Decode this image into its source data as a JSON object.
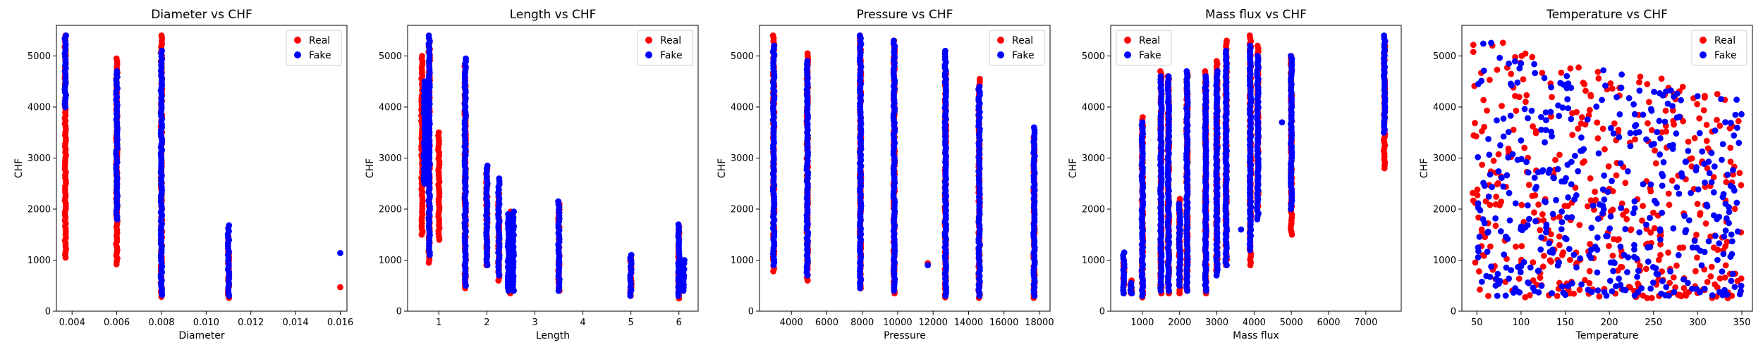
{
  "chart_data": [
    {
      "type": "scatter",
      "title": "Diameter vs CHF",
      "xlabel": "Diameter",
      "ylabel": "CHF",
      "xlim": [
        0.0033,
        0.0163
      ],
      "ylim": [
        0,
        5600
      ],
      "xticks": [
        0.004,
        0.006,
        0.008,
        0.01,
        0.012,
        0.014,
        0.016
      ],
      "xtick_labels": [
        "0.004",
        "0.006",
        "0.008",
        "0.010",
        "0.012",
        "0.014",
        "0.016"
      ],
      "yticks": [
        0,
        1000,
        2000,
        3000,
        4000,
        5000
      ],
      "ytick_labels": [
        "0",
        "1000",
        "2000",
        "3000",
        "4000",
        "5000"
      ],
      "legend_position": "top-right",
      "series": [
        {
          "name": "Real",
          "color": "#ff0000",
          "clusters": [
            {
              "x": 0.0037,
              "ymin": 1050,
              "ymax": 5400
            },
            {
              "x": 0.006,
              "ymin": 920,
              "ymax": 4950
            },
            {
              "x": 0.008,
              "ymin": 280,
              "ymax": 5400
            },
            {
              "x": 0.011,
              "ymin": 260,
              "ymax": 1450
            }
          ],
          "points": [
            [
              0.016,
              470
            ]
          ]
        },
        {
          "name": "Fake",
          "color": "#0000ff",
          "clusters": [
            {
              "x": 0.0037,
              "ymin": 4000,
              "ymax": 5400
            },
            {
              "x": 0.006,
              "ymin": 1800,
              "ymax": 4700
            },
            {
              "x": 0.008,
              "ymin": 320,
              "ymax": 5100
            },
            {
              "x": 0.011,
              "ymin": 300,
              "ymax": 1680
            }
          ],
          "points": [
            [
              0.016,
              1140
            ]
          ]
        }
      ]
    },
    {
      "type": "scatter",
      "title": "Length vs CHF",
      "xlabel": "Length",
      "ylabel": "CHF",
      "xlim": [
        0.35,
        6.4
      ],
      "ylim": [
        0,
        5600
      ],
      "xticks": [
        1,
        2,
        3,
        4,
        5,
        6
      ],
      "xtick_labels": [
        "1",
        "2",
        "3",
        "4",
        "5",
        "6"
      ],
      "yticks": [
        0,
        1000,
        2000,
        3000,
        4000,
        5000
      ],
      "ytick_labels": [
        "0",
        "1000",
        "2000",
        "3000",
        "4000",
        "5000"
      ],
      "legend_position": "top-right",
      "series": [
        {
          "name": "Real",
          "color": "#ff0000",
          "clusters": [
            {
              "x": 0.65,
              "ymin": 1500,
              "ymax": 5000
            },
            {
              "x": 0.8,
              "ymin": 950,
              "ymax": 5300
            },
            {
              "x": 1.0,
              "ymin": 1400,
              "ymax": 3500
            },
            {
              "x": 1.55,
              "ymin": 450,
              "ymax": 4800
            },
            {
              "x": 2.0,
              "ymin": 900,
              "ymax": 2800
            },
            {
              "x": 2.25,
              "ymin": 600,
              "ymax": 2300
            },
            {
              "x": 2.5,
              "ymin": 350,
              "ymax": 1950
            },
            {
              "x": 3.5,
              "ymin": 400,
              "ymax": 2100
            },
            {
              "x": 5.0,
              "ymin": 300,
              "ymax": 1100
            },
            {
              "x": 6.0,
              "ymin": 250,
              "ymax": 1650
            }
          ],
          "points": []
        },
        {
          "name": "Fake",
          "color": "#0000ff",
          "clusters": [
            {
              "x": 0.7,
              "ymin": 2500,
              "ymax": 4500
            },
            {
              "x": 0.8,
              "ymin": 1100,
              "ymax": 5400
            },
            {
              "x": 1.55,
              "ymin": 500,
              "ymax": 4950
            },
            {
              "x": 2.0,
              "ymin": 900,
              "ymax": 2850
            },
            {
              "x": 2.25,
              "ymin": 700,
              "ymax": 2600
            },
            {
              "x": 2.45,
              "ymin": 400,
              "ymax": 1900
            },
            {
              "x": 2.55,
              "ymin": 400,
              "ymax": 1950
            },
            {
              "x": 3.5,
              "ymin": 400,
              "ymax": 2150
            },
            {
              "x": 5.0,
              "ymin": 300,
              "ymax": 1100
            },
            {
              "x": 6.0,
              "ymin": 300,
              "ymax": 1700
            },
            {
              "x": 6.1,
              "ymin": 400,
              "ymax": 1000
            }
          ],
          "points": []
        }
      ]
    },
    {
      "type": "scatter",
      "title": "Pressure vs CHF",
      "xlabel": "Pressure",
      "ylabel": "CHF",
      "xlim": [
        2200,
        18600
      ],
      "ylim": [
        0,
        5600
      ],
      "xticks": [
        4000,
        6000,
        8000,
        10000,
        12000,
        14000,
        16000,
        18000
      ],
      "xtick_labels": [
        "4000",
        "6000",
        "8000",
        "10000",
        "12000",
        "14000",
        "16000",
        "18000"
      ],
      "yticks": [
        0,
        1000,
        2000,
        3000,
        4000,
        5000
      ],
      "ytick_labels": [
        "0",
        "1000",
        "2000",
        "3000",
        "4000",
        "5000"
      ],
      "legend_position": "top-right",
      "series": [
        {
          "name": "Real",
          "color": "#ff0000",
          "clusters": [
            {
              "x": 3000,
              "ymin": 780,
              "ymax": 5400
            },
            {
              "x": 4900,
              "ymin": 600,
              "ymax": 5050
            },
            {
              "x": 7900,
              "ymin": 450,
              "ymax": 5400
            },
            {
              "x": 9800,
              "ymin": 350,
              "ymax": 5300
            },
            {
              "x": 12700,
              "ymin": 270,
              "ymax": 4700
            },
            {
              "x": 14600,
              "ymin": 260,
              "ymax": 4550
            },
            {
              "x": 17700,
              "ymin": 260,
              "ymax": 3400
            }
          ],
          "points": [
            [
              11700,
              940
            ]
          ]
        },
        {
          "name": "Fake",
          "color": "#0000ff",
          "clusters": [
            {
              "x": 3000,
              "ymin": 900,
              "ymax": 5200
            },
            {
              "x": 4900,
              "ymin": 700,
              "ymax": 4900
            },
            {
              "x": 7900,
              "ymin": 450,
              "ymax": 5400
            },
            {
              "x": 9800,
              "ymin": 400,
              "ymax": 5300
            },
            {
              "x": 12700,
              "ymin": 300,
              "ymax": 5100
            },
            {
              "x": 14600,
              "ymin": 300,
              "ymax": 4400
            },
            {
              "x": 17700,
              "ymin": 300,
              "ymax": 3600
            }
          ],
          "points": [
            [
              11700,
              900
            ]
          ]
        }
      ]
    },
    {
      "type": "scatter",
      "title": "Mass flux vs CHF",
      "xlabel": "Mass flux",
      "ylabel": "CHF",
      "xlim": [
        150,
        7950
      ],
      "ylim": [
        0,
        5600
      ],
      "xticks": [
        1000,
        2000,
        3000,
        4000,
        5000,
        6000,
        7000
      ],
      "xtick_labels": [
        "1000",
        "2000",
        "3000",
        "4000",
        "5000",
        "6000",
        "7000"
      ],
      "yticks": [
        0,
        1000,
        2000,
        3000,
        4000,
        5000
      ],
      "ytick_labels": [
        "0",
        "1000",
        "2000",
        "3000",
        "4000",
        "5000"
      ],
      "legend_position": "top-left",
      "series": [
        {
          "name": "Real",
          "color": "#ff0000",
          "clusters": [
            {
              "x": 500,
              "ymin": 350,
              "ymax": 1000
            },
            {
              "x": 700,
              "ymin": 350,
              "ymax": 600
            },
            {
              "x": 1000,
              "ymin": 270,
              "ymax": 3800
            },
            {
              "x": 1500,
              "ymin": 350,
              "ymax": 4700
            },
            {
              "x": 1700,
              "ymin": 350,
              "ymax": 4600
            },
            {
              "x": 2000,
              "ymin": 350,
              "ymax": 2200
            },
            {
              "x": 2200,
              "ymin": 400,
              "ymax": 4650
            },
            {
              "x": 2700,
              "ymin": 350,
              "ymax": 4700
            },
            {
              "x": 3000,
              "ymin": 800,
              "ymax": 4900
            },
            {
              "x": 3250,
              "ymin": 900,
              "ymax": 5300
            },
            {
              "x": 3900,
              "ymin": 900,
              "ymax": 5400
            },
            {
              "x": 4100,
              "ymin": 2000,
              "ymax": 5200
            },
            {
              "x": 5000,
              "ymin": 1500,
              "ymax": 5000
            },
            {
              "x": 7500,
              "ymin": 2800,
              "ymax": 5200
            }
          ],
          "points": []
        },
        {
          "name": "Fake",
          "color": "#0000ff",
          "clusters": [
            {
              "x": 500,
              "ymin": 350,
              "ymax": 1150
            },
            {
              "x": 700,
              "ymin": 350,
              "ymax": 550
            },
            {
              "x": 1000,
              "ymin": 300,
              "ymax": 3700
            },
            {
              "x": 1500,
              "ymin": 400,
              "ymax": 4600
            },
            {
              "x": 1700,
              "ymin": 400,
              "ymax": 4600
            },
            {
              "x": 2000,
              "ymin": 500,
              "ymax": 2100
            },
            {
              "x": 2200,
              "ymin": 400,
              "ymax": 4700
            },
            {
              "x": 2700,
              "ymin": 400,
              "ymax": 4600
            },
            {
              "x": 3000,
              "ymin": 700,
              "ymax": 4700
            },
            {
              "x": 3250,
              "ymin": 900,
              "ymax": 5100
            },
            {
              "x": 3900,
              "ymin": 1200,
              "ymax": 5200
            },
            {
              "x": 4100,
              "ymin": 1800,
              "ymax": 5000
            },
            {
              "x": 5000,
              "ymin": 2000,
              "ymax": 5000
            },
            {
              "x": 7500,
              "ymin": 3500,
              "ymax": 5400
            }
          ],
          "points": [
            [
              3650,
              1600
            ],
            [
              4750,
              3700
            ]
          ]
        }
      ]
    },
    {
      "type": "scatter",
      "title": "Temperature vs CHF",
      "xlabel": "Temperature",
      "ylabel": "CHF",
      "xlim": [
        33,
        362
      ],
      "ylim": [
        0,
        5600
      ],
      "xticks": [
        50,
        100,
        150,
        200,
        250,
        300,
        350
      ],
      "xtick_labels": [
        "50",
        "100",
        "150",
        "200",
        "250",
        "300",
        "350"
      ],
      "yticks": [
        0,
        1000,
        2000,
        3000,
        4000,
        5000
      ],
      "ytick_labels": [
        "0",
        "1000",
        "2000",
        "3000",
        "4000",
        "5000"
      ],
      "legend_position": "top-right",
      "series": [
        {
          "name": "Real",
          "color": "#ff0000",
          "scatter_region": {
            "xmin": 45,
            "xmax": 350,
            "ymin": 250,
            "ymax": 5400
          },
          "points": []
        },
        {
          "name": "Fake",
          "color": "#0000ff",
          "scatter_region": {
            "xmin": 50,
            "xmax": 350,
            "ymin": 300,
            "ymax": 5350
          },
          "points": []
        }
      ]
    }
  ]
}
